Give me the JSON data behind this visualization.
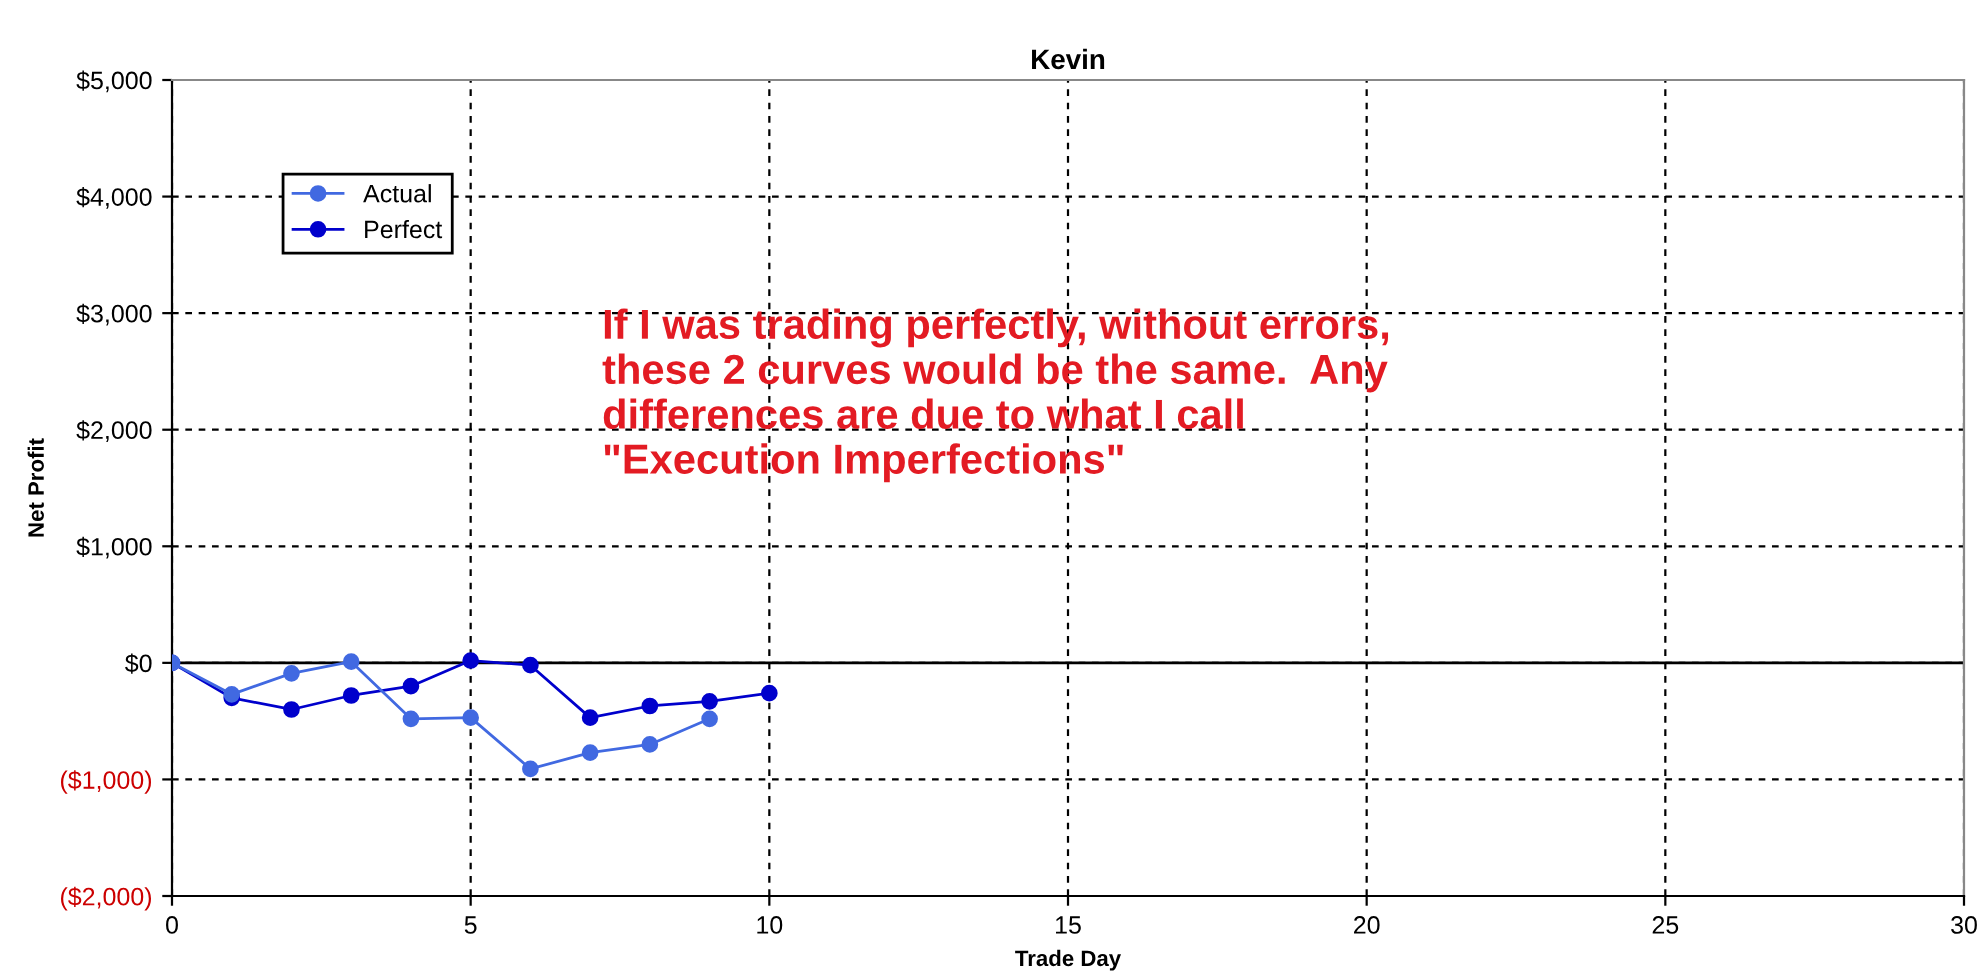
{
  "chart_data": {
    "type": "line",
    "title": "Kevin",
    "xlabel": "Trade Day",
    "ylabel": "Net Profit",
    "series": [
      {
        "name": "Actual",
        "color": "#4169e1",
        "x": [
          0,
          1,
          2,
          3,
          4,
          5,
          6,
          7,
          8,
          9
        ],
        "values": [
          0,
          -270,
          -90,
          10,
          -480,
          -470,
          -910,
          -770,
          -700,
          -480
        ]
      },
      {
        "name": "Perfect",
        "color": "#0000cc",
        "x": [
          0,
          1,
          2,
          3,
          4,
          5,
          6,
          7,
          8,
          9,
          10
        ],
        "values": [
          0,
          -300,
          -400,
          -280,
          -200,
          20,
          -20,
          -470,
          -370,
          -330,
          -260
        ]
      }
    ],
    "xlim": [
      0,
      30
    ],
    "xticks": [
      0,
      5,
      10,
      15,
      20,
      25,
      30
    ],
    "ylim": [
      -2000,
      5000
    ],
    "yticks": [
      {
        "value": -2000,
        "label": "($2,000)"
      },
      {
        "value": -1000,
        "label": "($1,000)"
      },
      {
        "value": 0,
        "label": "$0"
      },
      {
        "value": 1000,
        "label": "$1,000"
      },
      {
        "value": 2000,
        "label": "$2,000"
      },
      {
        "value": 3000,
        "label": "$3,000"
      },
      {
        "value": 4000,
        "label": "$4,000"
      },
      {
        "value": 5000,
        "label": "$5,000"
      }
    ],
    "grid": true,
    "legend": "top left",
    "marker": "circle",
    "line_style": "solid",
    "annotations": [
      "If I was trading perfectly, without errors,\nthese 2 curves would be the same.  Any\ndifferences are due to what I call\n\"Execution Imperfections\""
    ]
  }
}
